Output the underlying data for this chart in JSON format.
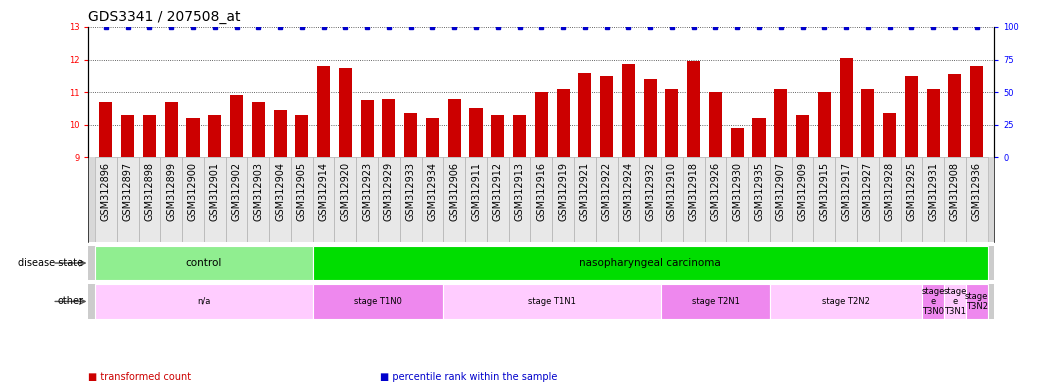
{
  "title": "GDS3341 / 207508_at",
  "samples": [
    "GSM312896",
    "GSM312897",
    "GSM312898",
    "GSM312899",
    "GSM312900",
    "GSM312901",
    "GSM312902",
    "GSM312903",
    "GSM312904",
    "GSM312905",
    "GSM312914",
    "GSM312920",
    "GSM312923",
    "GSM312929",
    "GSM312933",
    "GSM312934",
    "GSM312906",
    "GSM312911",
    "GSM312912",
    "GSM312913",
    "GSM312916",
    "GSM312919",
    "GSM312921",
    "GSM312922",
    "GSM312924",
    "GSM312932",
    "GSM312910",
    "GSM312918",
    "GSM312926",
    "GSM312930",
    "GSM312935",
    "GSM312907",
    "GSM312909",
    "GSM312915",
    "GSM312917",
    "GSM312927",
    "GSM312928",
    "GSM312925",
    "GSM312931",
    "GSM312908",
    "GSM312936"
  ],
  "bar_values": [
    10.7,
    10.3,
    10.3,
    10.7,
    10.2,
    10.3,
    10.9,
    10.7,
    10.45,
    10.3,
    11.8,
    11.75,
    10.75,
    10.8,
    10.35,
    10.2,
    10.8,
    10.5,
    10.3,
    10.3,
    11.0,
    11.1,
    11.6,
    11.5,
    11.85,
    11.4,
    11.1,
    11.95,
    11.0,
    9.9,
    10.2,
    11.1,
    10.3,
    11.0,
    12.05,
    11.1,
    10.35,
    11.5,
    11.1,
    11.55,
    11.8
  ],
  "ylim_left": [
    9,
    13
  ],
  "ylim_right": [
    0,
    100
  ],
  "yticks_left": [
    9,
    10,
    11,
    12,
    13
  ],
  "yticks_right": [
    0,
    25,
    50,
    75,
    100
  ],
  "bar_color": "#cc0000",
  "percentile_color": "#0000cc",
  "bar_bottom": 9,
  "disease_state_groups": [
    {
      "label": "control",
      "start": 0,
      "end": 10,
      "color": "#90ee90"
    },
    {
      "label": "nasopharyngeal carcinoma",
      "start": 10,
      "end": 41,
      "color": "#00dd00"
    }
  ],
  "other_groups": [
    {
      "label": "n/a",
      "start": 0,
      "end": 10,
      "color": "#ffccff"
    },
    {
      "label": "stage T1N0",
      "start": 10,
      "end": 16,
      "color": "#ee88ee"
    },
    {
      "label": "stage T1N1",
      "start": 16,
      "end": 26,
      "color": "#ffccff"
    },
    {
      "label": "stage T2N1",
      "start": 26,
      "end": 31,
      "color": "#ee88ee"
    },
    {
      "label": "stage T2N2",
      "start": 31,
      "end": 38,
      "color": "#ffccff"
    },
    {
      "label": "stage\ne\nT3N0",
      "start": 38,
      "end": 39,
      "color": "#ee88ee"
    },
    {
      "label": "stage\ne\nT3N1",
      "start": 39,
      "end": 40,
      "color": "#ffccff"
    },
    {
      "label": "stage\nT3N2",
      "start": 40,
      "end": 41,
      "color": "#ee88ee"
    }
  ],
  "legend_items": [
    {
      "label": "transformed count",
      "color": "#cc0000"
    },
    {
      "label": "percentile rank within the sample",
      "color": "#0000cc"
    }
  ],
  "bg_color": "#ffffff",
  "plot_bg_color": "#ffffff",
  "title_fontsize": 10,
  "tick_fontsize": 6,
  "bar_label_fontsize": 7
}
